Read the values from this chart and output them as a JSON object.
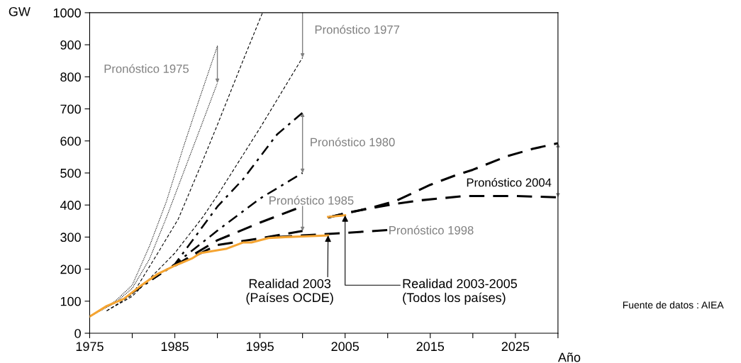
{
  "chart_data": {
    "type": "line",
    "xlabel": "Año",
    "ylabel": "GW",
    "xlim": [
      1975,
      2030
    ],
    "ylim": [
      0,
      1000
    ],
    "xticks": [
      1975,
      {
        "value": 1980,
        "label": null
      },
      1985,
      {
        "value": 1990,
        "label": null
      },
      1995,
      {
        "value": 2000,
        "label": null
      },
      2005,
      {
        "value": 2010,
        "label": null
      },
      2015,
      {
        "value": 2020,
        "label": null
      },
      2025,
      {
        "value": 2030,
        "label": null
      }
    ],
    "yticks": [
      0,
      100,
      200,
      300,
      400,
      500,
      600,
      700,
      800,
      900,
      1000
    ],
    "grid": false,
    "legend": false,
    "series": [
      {
        "color": "#000000",
        "line_style": "dotted",
        "x": [
          1975,
          1978,
          1980,
          1982,
          1984,
          1986,
          1988,
          1990
        ],
        "values": [
          52,
          100,
          150,
          270,
          410,
          580,
          740,
          896
        ]
      },
      {
        "color": "#000000",
        "line_style": "dotted",
        "x": [
          1975,
          1978,
          1980,
          1982,
          1984,
          1986,
          1988,
          1990
        ],
        "values": [
          52,
          95,
          140,
          230,
          360,
          500,
          640,
          781
        ]
      },
      {
        "color": "#000000",
        "line_style": "dashed",
        "x": [
          1977,
          1980,
          1983,
          1985.4,
          1988,
          1990,
          1993,
          1995.3
        ],
        "values": [
          70,
          120,
          250,
          356,
          520,
          650,
          850,
          1000
        ]
      },
      {
        "color": "#000000",
        "line_style": "dashed",
        "x": [
          1977,
          1980,
          1985,
          1988.3,
          1990,
          1995,
          2000
        ],
        "values": [
          70,
          115,
          250,
          363,
          430,
          640,
          860
        ]
      },
      {
        "color": "#000000",
        "line_style": "dashdot",
        "x": [
          1980,
          1985,
          1990,
          1993,
          1995,
          1997,
          2000
        ],
        "values": [
          126,
          215,
          395,
          480,
          550,
          620,
          688
        ]
      },
      {
        "color": "#000000",
        "line_style": "dashdot",
        "x": [
          1980,
          1985,
          1990,
          1995,
          2000
        ],
        "values": [
          126,
          215,
          320,
          420,
          500
        ]
      },
      {
        "color": "#000000",
        "line_style": "longdash",
        "x": [
          1985,
          1990,
          1995,
          2000
        ],
        "values": [
          211,
          290,
          345,
          396
        ]
      },
      {
        "color": "#000000",
        "line_style": "longdash",
        "x": [
          1985,
          1990,
          1995,
          2000
        ],
        "values": [
          211,
          275,
          296,
          319
        ]
      },
      {
        "color": "#000000",
        "line_style": "longdash",
        "x": [
          1997,
          2000,
          2005,
          2010
        ],
        "values": [
          300,
          305,
          313,
          322
        ]
      },
      {
        "color": "#000000",
        "line_style": "longdash",
        "x": [
          2003,
          2005,
          2008,
          2011,
          2015,
          2018,
          2020,
          2024,
          2027,
          2030
        ],
        "values": [
          361,
          374,
          391,
          413,
          463,
          493,
          510,
          552,
          575,
          593
        ]
      },
      {
        "color": "#000000",
        "line_style": "longdash",
        "x": [
          2003,
          2005,
          2008,
          2011,
          2014,
          2019,
          2025,
          2030
        ],
        "values": [
          361,
          374,
          390,
          404,
          415,
          428,
          428,
          424
        ]
      },
      {
        "color": "#f5a431",
        "line_style": "solid",
        "x": [
          1975,
          1977,
          1979,
          1981,
          1983,
          1985,
          1987,
          1988,
          1991,
          1993,
          1994,
          1996,
          1998,
          2000,
          2003
        ],
        "values": [
          52,
          85,
          107,
          148,
          185,
          211,
          233,
          250,
          263,
          283,
          283,
          297,
          300,
          302,
          305
        ]
      },
      {
        "color": "#f5a431",
        "line_style": "solid",
        "x": [
          2003,
          2005
        ],
        "values": [
          363,
          368
        ]
      }
    ],
    "annotations": [
      "Pronóstico 1975",
      "Pronóstico 1977",
      "Pronóstico 1980",
      "Pronóstico 1985",
      "Pronóstico 1998",
      "Pronóstico 2004",
      {
        "text": "Realidad 2003\n(Países OCDE)",
        "x": 2003,
        "y": 305
      },
      {
        "text": "Realidad 2003-2005\n(Todos los países)",
        "x": 2005,
        "y": 368
      },
      "Fuente de datos : AIEA"
    ]
  }
}
